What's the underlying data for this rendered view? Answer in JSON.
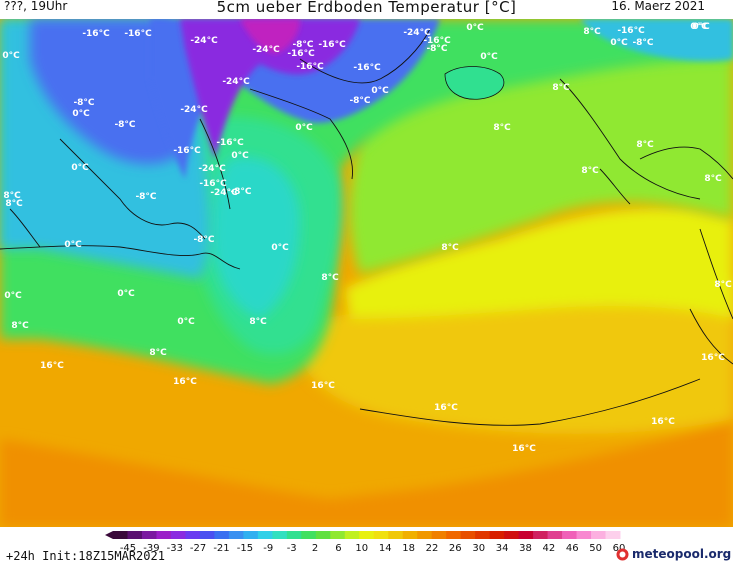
{
  "header": {
    "left": "???, 19Uhr",
    "title": "5cm ueber Erdboden Temperatur [°C]",
    "date": "16. Maerz 2021"
  },
  "footer": {
    "run": "+24h  Init:18Z15MAR2021",
    "brand": "meteopool.org"
  },
  "legend": {
    "ticks": [
      "-45",
      "-39",
      "-33",
      "-27",
      "-21",
      "-15",
      "-9",
      "-3",
      "2",
      "6",
      "10",
      "14",
      "18",
      "22",
      "26",
      "30",
      "34",
      "38",
      "42",
      "46",
      "50",
      "60"
    ],
    "colors": [
      "#3a0a3a",
      "#5a1070",
      "#7a1aa0",
      "#9a20c8",
      "#8a2ae0",
      "#6a3af0",
      "#4a50f0",
      "#3a70f0",
      "#3a90f0",
      "#30b0f0",
      "#30d0e8",
      "#30e0c0",
      "#30e090",
      "#40e060",
      "#60e040",
      "#90e830",
      "#c0f020",
      "#e8f010",
      "#f0e010",
      "#f0c808",
      "#f0b000",
      "#f09800",
      "#f08000",
      "#f06800",
      "#e85000",
      "#e03800",
      "#d82000",
      "#d01010",
      "#c80030",
      "#d02060",
      "#e04090",
      "#f060b8",
      "#f888d0",
      "#fcb0e0",
      "#fdd0ec"
    ]
  },
  "map_colors": {
    "water_cold": "#2ad8c8",
    "water_cool": "#30e090",
    "green": "#40e060",
    "lime": "#90e830",
    "yellow": "#e8f010",
    "orange_light": "#f0c808",
    "orange": "#f0a800",
    "orange_deep": "#f09000",
    "blue": "#4a70f0",
    "violet": "#8a2ae0",
    "magenta": "#b020c0",
    "coast": "#111111"
  },
  "labels": [
    {
      "t": "-16°C"
    },
    {
      "t": "-16°C"
    },
    {
      "t": "-24°C"
    },
    {
      "t": "-24°C"
    },
    {
      "t": "-24°C"
    },
    {
      "t": "-8°C"
    },
    {
      "t": "-16°C"
    },
    {
      "t": "-16°C"
    },
    {
      "t": "-16°C"
    },
    {
      "t": "-24°C"
    },
    {
      "t": "-16°C"
    },
    {
      "t": "-8°C"
    },
    {
      "t": "0°C"
    },
    {
      "t": "0°C"
    },
    {
      "t": "-16°C"
    },
    {
      "t": "0°C"
    },
    {
      "t": "0°C"
    },
    {
      "t": "-8°C"
    },
    {
      "t": "0°C"
    },
    {
      "t": "-24°C"
    },
    {
      "t": "-8°C"
    },
    {
      "t": "0°C"
    },
    {
      "t": "-16°C"
    },
    {
      "t": "-8°C"
    },
    {
      "t": "-24°C"
    },
    {
      "t": "0°C"
    },
    {
      "t": "-16°C"
    },
    {
      "t": "-16°C"
    },
    {
      "t": "0°C"
    },
    {
      "t": "-24°C"
    },
    {
      "t": "-8°C"
    },
    {
      "t": "-8°C"
    },
    {
      "t": "8°C"
    },
    {
      "t": "8°C"
    },
    {
      "t": "8°C"
    },
    {
      "t": "8°C"
    },
    {
      "t": "-8°C"
    },
    {
      "t": "0°C"
    },
    {
      "t": "0°C"
    },
    {
      "t": "0°C"
    },
    {
      "t": "8°C"
    },
    {
      "t": "8°C"
    },
    {
      "t": "0°C"
    },
    {
      "t": "0°C"
    },
    {
      "t": "8°C"
    },
    {
      "t": "8°C"
    },
    {
      "t": "16°C"
    },
    {
      "t": "8°C"
    },
    {
      "t": "16°C"
    },
    {
      "t": "16°C"
    },
    {
      "t": "16°C"
    },
    {
      "t": "16°C"
    },
    {
      "t": "16°C"
    },
    {
      "t": "16°C"
    },
    {
      "t": "0°C"
    },
    {
      "t": "-16°C"
    },
    {
      "t": "-8°C"
    },
    {
      "t": "0°C"
    },
    {
      "t": "8°C"
    },
    {
      "t": "8°C"
    },
    {
      "t": "8°C"
    },
    {
      "t": "8°C"
    },
    {
      "t": "8°C"
    },
    {
      "t": "0°C"
    }
  ]
}
